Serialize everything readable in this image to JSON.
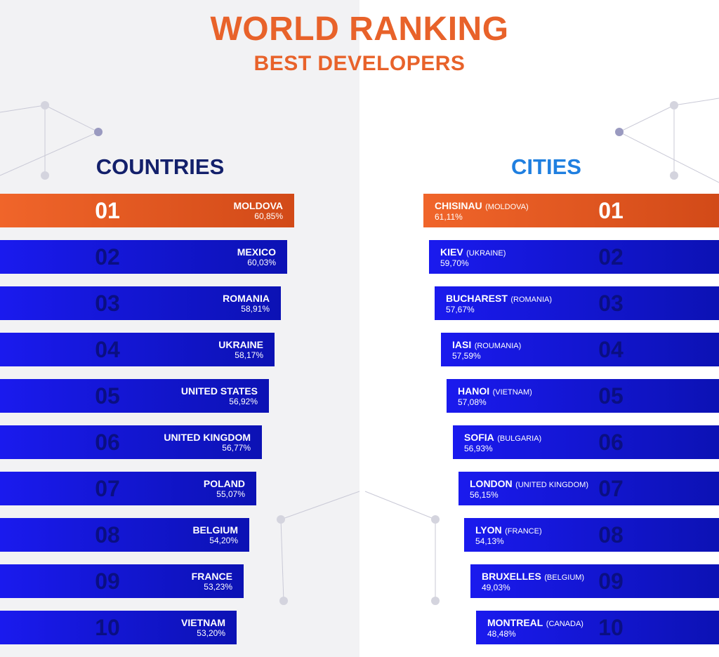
{
  "header": {
    "title": "WORLD RANKING",
    "subtitle": "BEST DEVELOPERS"
  },
  "colors": {
    "accent": "#e8622a",
    "bar": "#1a1aee",
    "countries_heading": "#13206b",
    "cities_heading": "#1f7fe0"
  },
  "countries": {
    "heading": "COUNTRIES",
    "items": [
      {
        "rank": "01",
        "name": "MOLDOVA",
        "pct": "60,85%"
      },
      {
        "rank": "02",
        "name": "MEXICO",
        "pct": "60,03%"
      },
      {
        "rank": "03",
        "name": "ROMANIA",
        "pct": "58,91%"
      },
      {
        "rank": "04",
        "name": "UKRAINE",
        "pct": "58,17%"
      },
      {
        "rank": "05",
        "name": "UNITED STATES",
        "pct": "56,92%"
      },
      {
        "rank": "06",
        "name": "UNITED KINGDOM",
        "pct": "56,77%"
      },
      {
        "rank": "07",
        "name": "POLAND",
        "pct": "55,07%"
      },
      {
        "rank": "08",
        "name": "BELGIUM",
        "pct": "54,20%"
      },
      {
        "rank": "09",
        "name": "FRANCE",
        "pct": "53,23%"
      },
      {
        "rank": "10",
        "name": "VIETNAM",
        "pct": "53,20%"
      }
    ]
  },
  "cities": {
    "heading": "CITIES",
    "items": [
      {
        "rank": "01",
        "name": "CHISINAU",
        "country": "(MOLDOVA)",
        "pct": "61,11%"
      },
      {
        "rank": "02",
        "name": "KIEV",
        "country": "(UKRAINE)",
        "pct": "59,70%"
      },
      {
        "rank": "03",
        "name": "BUCHAREST",
        "country": "(ROMANIA)",
        "pct": "57,67%"
      },
      {
        "rank": "04",
        "name": "IASI",
        "country": "(ROUMANIA)",
        "pct": "57,59%"
      },
      {
        "rank": "05",
        "name": "HANOI",
        "country": "(VIETNAM)",
        "pct": "57,08%"
      },
      {
        "rank": "06",
        "name": "SOFIA",
        "country": "(BULGARIA)",
        "pct": "56,93%"
      },
      {
        "rank": "07",
        "name": "LONDON",
        "country": "(UNITED KINGDOM)",
        "pct": "56,15%"
      },
      {
        "rank": "08",
        "name": "LYON",
        "country": "(FRANCE)",
        "pct": "54,13%"
      },
      {
        "rank": "09",
        "name": "BRUXELLES",
        "country": "(BELGIUM)",
        "pct": "49,03%"
      },
      {
        "rank": "10",
        "name": "MONTREAL",
        "country": "(CANADA)",
        "pct": "48,48%"
      }
    ]
  },
  "chart_data": [
    {
      "type": "bar",
      "title": "COUNTRIES",
      "categories": [
        "MOLDOVA",
        "MEXICO",
        "ROMANIA",
        "UKRAINE",
        "UNITED STATES",
        "UNITED KINGDOM",
        "POLAND",
        "BELGIUM",
        "FRANCE",
        "VIETNAM"
      ],
      "values": [
        60.85,
        60.03,
        58.91,
        58.17,
        56.92,
        56.77,
        55.07,
        54.2,
        53.23,
        53.2
      ],
      "orientation": "horizontal"
    },
    {
      "type": "bar",
      "title": "CITIES",
      "categories": [
        "CHISINAU",
        "KIEV",
        "BUCHAREST",
        "IASI",
        "HANOI",
        "SOFIA",
        "LONDON",
        "LYON",
        "BRUXELLES",
        "MONTREAL"
      ],
      "values": [
        61.11,
        59.7,
        57.67,
        57.59,
        57.08,
        56.93,
        56.15,
        54.13,
        49.03,
        48.48
      ],
      "orientation": "horizontal"
    }
  ]
}
